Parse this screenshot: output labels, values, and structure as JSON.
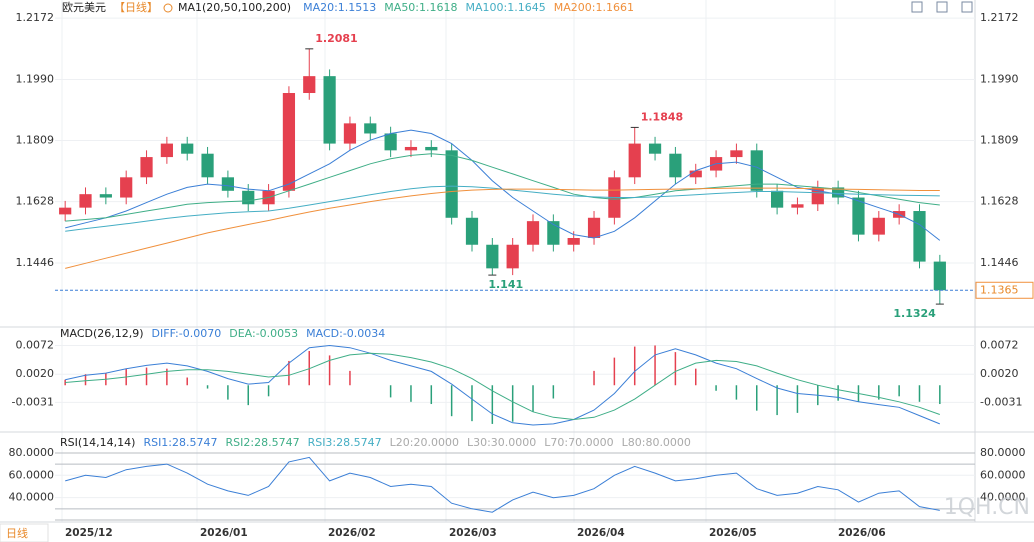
{
  "header": {
    "symbol": "欧元美元",
    "period": "【日线】",
    "indicator": "MA1(20,50,100,200)"
  },
  "period_button": "日线",
  "watermark": "1QH.CN",
  "chart_data": [
    {
      "type": "candlestick",
      "ylim": [
        1.1262,
        1.2211
      ],
      "yticks": [
        1.2172,
        {
          "value": 1.199,
          "label": "1.1990"
        },
        1.1809,
        1.1628,
        1.1446
      ],
      "up_color": "#e5404f",
      "down_color": "#2aa07a",
      "candles": {
        "open": [
          1.159,
          1.161,
          1.165,
          1.164,
          1.17,
          1.176,
          1.18,
          1.177,
          1.17,
          1.166,
          1.162,
          1.166,
          1.195,
          1.2,
          1.18,
          1.186,
          1.183,
          1.178,
          1.179,
          1.178,
          1.158,
          1.15,
          1.143,
          1.15,
          1.157,
          1.15,
          1.152,
          1.158,
          1.17,
          1.18,
          1.177,
          1.17,
          1.172,
          1.176,
          1.178,
          1.166,
          1.161,
          1.162,
          1.167,
          1.164,
          1.153,
          1.158,
          1.16,
          1.145
        ],
        "high": [
          1.163,
          1.167,
          1.167,
          1.172,
          1.178,
          1.182,
          1.182,
          1.179,
          1.172,
          1.168,
          1.168,
          1.197,
          1.2081,
          1.202,
          1.188,
          1.188,
          1.185,
          1.181,
          1.181,
          1.18,
          1.16,
          1.152,
          1.152,
          1.159,
          1.159,
          1.154,
          1.16,
          1.172,
          1.1848,
          1.182,
          1.179,
          1.174,
          1.178,
          1.18,
          1.18,
          1.168,
          1.164,
          1.169,
          1.169,
          1.166,
          1.16,
          1.162,
          1.162,
          1.147
        ],
        "low": [
          1.157,
          1.159,
          1.162,
          1.162,
          1.168,
          1.174,
          1.175,
          1.168,
          1.164,
          1.16,
          1.16,
          1.164,
          1.193,
          1.178,
          1.178,
          1.181,
          1.176,
          1.176,
          1.176,
          1.156,
          1.148,
          1.141,
          1.141,
          1.148,
          1.148,
          1.148,
          1.15,
          1.156,
          1.168,
          1.175,
          1.168,
          1.168,
          1.17,
          1.174,
          1.164,
          1.159,
          1.159,
          1.16,
          1.162,
          1.151,
          1.151,
          1.156,
          1.143,
          1.1324
        ],
        "close": [
          1.161,
          1.165,
          1.164,
          1.17,
          1.176,
          1.18,
          1.177,
          1.17,
          1.166,
          1.162,
          1.166,
          1.195,
          1.2,
          1.18,
          1.186,
          1.183,
          1.178,
          1.179,
          1.178,
          1.158,
          1.15,
          1.143,
          1.15,
          1.157,
          1.15,
          1.152,
          1.158,
          1.17,
          1.18,
          1.177,
          1.17,
          1.172,
          1.176,
          1.178,
          1.166,
          1.161,
          1.162,
          1.167,
          1.164,
          1.153,
          1.158,
          1.16,
          1.145,
          1.1365
        ]
      },
      "series": [
        {
          "name": "MA20:1.1513",
          "color": "#3b7fd6",
          "values": [
            1.155,
            1.1565,
            1.158,
            1.16,
            1.1625,
            1.165,
            1.167,
            1.168,
            1.1675,
            1.1665,
            1.166,
            1.168,
            1.171,
            1.174,
            1.178,
            1.181,
            1.183,
            1.184,
            1.183,
            1.18,
            1.175,
            1.169,
            1.164,
            1.16,
            1.156,
            1.153,
            1.152,
            1.154,
            1.158,
            1.163,
            1.168,
            1.172,
            1.174,
            1.1745,
            1.173,
            1.17,
            1.167,
            1.166,
            1.165,
            1.163,
            1.161,
            1.159,
            1.156,
            1.1513
          ]
        },
        {
          "name": "MA50:1.1618",
          "color": "#3fae87",
          "values": [
            1.157,
            1.1575,
            1.158,
            1.159,
            1.16,
            1.161,
            1.162,
            1.1625,
            1.1628,
            1.163,
            1.164,
            1.166,
            1.168,
            1.17,
            1.172,
            1.174,
            1.1755,
            1.1765,
            1.177,
            1.1765,
            1.175,
            1.173,
            1.171,
            1.169,
            1.167,
            1.165,
            1.164,
            1.1635,
            1.164,
            1.165,
            1.166,
            1.1665,
            1.167,
            1.1675,
            1.168,
            1.168,
            1.1675,
            1.167,
            1.1665,
            1.1655,
            1.1645,
            1.1635,
            1.1625,
            1.1618
          ]
        },
        {
          "name": "MA100:1.1645",
          "color": "#45aec4",
          "values": [
            1.154,
            1.1548,
            1.1555,
            1.1562,
            1.157,
            1.1578,
            1.1585,
            1.159,
            1.1595,
            1.1598,
            1.16,
            1.1608,
            1.1618,
            1.1628,
            1.1638,
            1.1648,
            1.1658,
            1.1666,
            1.1672,
            1.1674,
            1.1672,
            1.1668,
            1.1662,
            1.1656,
            1.165,
            1.1645,
            1.1642,
            1.164,
            1.164,
            1.1642,
            1.1645,
            1.1648,
            1.1652,
            1.1655,
            1.1658,
            1.1658,
            1.1656,
            1.1654,
            1.1652,
            1.165,
            1.1648,
            1.1647,
            1.1646,
            1.1645
          ]
        },
        {
          "name": "MA200:1.1661",
          "color": "#f0903c",
          "values": [
            1.143,
            1.1445,
            1.146,
            1.1475,
            1.149,
            1.1505,
            1.152,
            1.1535,
            1.1548,
            1.156,
            1.1572,
            1.1585,
            1.1597,
            1.1608,
            1.1618,
            1.1628,
            1.1637,
            1.1645,
            1.1652,
            1.1658,
            1.1662,
            1.1664,
            1.1665,
            1.1665,
            1.1664,
            1.1663,
            1.1662,
            1.1662,
            1.1663,
            1.1664,
            1.1665,
            1.1666,
            1.1667,
            1.1668,
            1.1668,
            1.1668,
            1.1667,
            1.1666,
            1.1665,
            1.1664,
            1.1663,
            1.1662,
            1.1661,
            1.1661
          ]
        }
      ],
      "x_labels": [
        "2025/12",
        "2026/01",
        "2026/02",
        "2026/03",
        "2026/04",
        "2026/05",
        "2026/06"
      ]
    },
    {
      "type": "macd",
      "title": "MACD(26,12,9)",
      "ylim": [
        -0.0081,
        0.01
      ],
      "yticks": [
        0.0072,
        {
          "value": 0.002,
          "label": "0.0020"
        },
        -0.0031
      ],
      "series": [
        {
          "name": "DIFF:-0.0070",
          "color": "#3b7fd6",
          "values": [
            0.001,
            0.0018,
            0.0022,
            0.003,
            0.0036,
            0.004,
            0.0035,
            0.0025,
            0.0012,
            0.0002,
            0.0005,
            0.004,
            0.0068,
            0.0072,
            0.0068,
            0.0058,
            0.0045,
            0.0035,
            0.0025,
            0.0002,
            -0.0025,
            -0.0052,
            -0.0068,
            -0.0072,
            -0.007,
            -0.0062,
            -0.0045,
            -0.0015,
            0.0025,
            0.0055,
            0.0066,
            0.0055,
            0.004,
            0.003,
            0.0012,
            -0.0005,
            -0.0015,
            -0.0018,
            -0.0022,
            -0.003,
            -0.0035,
            -0.004,
            -0.0055,
            -0.007
          ]
        },
        {
          "name": "DEA:-0.0053",
          "color": "#3fae87",
          "values": [
            0.0005,
            0.0008,
            0.0011,
            0.0015,
            0.002,
            0.0025,
            0.0028,
            0.0028,
            0.0025,
            0.002,
            0.0015,
            0.0018,
            0.003,
            0.0045,
            0.0055,
            0.0058,
            0.0056,
            0.005,
            0.0042,
            0.003,
            0.0012,
            -0.001,
            -0.003,
            -0.0048,
            -0.0058,
            -0.0062,
            -0.0058,
            -0.0045,
            -0.0025,
            0.0,
            0.0025,
            0.004,
            0.0045,
            0.0043,
            0.0035,
            0.0022,
            0.001,
            0.0,
            -0.0008,
            -0.0015,
            -0.0022,
            -0.003,
            -0.004,
            -0.0053
          ]
        }
      ],
      "histogram": {
        "name": "MACD:-0.0034",
        "color": "#3b7fd6",
        "values": [
          0.001,
          0.002,
          0.0022,
          0.003,
          0.0032,
          0.003,
          0.0014,
          -0.0006,
          -0.0026,
          -0.0036,
          -0.002,
          0.0044,
          0.0062,
          0.0054,
          0.0026,
          0.0,
          -0.0022,
          -0.003,
          -0.0034,
          -0.0056,
          -0.0065,
          -0.007,
          -0.0066,
          -0.0048,
          -0.0024,
          0.0,
          0.0026,
          0.005,
          0.007,
          0.0072,
          0.006,
          0.003,
          -0.001,
          -0.0026,
          -0.0046,
          -0.0054,
          -0.005,
          -0.0036,
          -0.0028,
          -0.003,
          -0.0026,
          -0.002,
          -0.003,
          -0.0034
        ]
      }
    },
    {
      "type": "rsi",
      "title": "RSI(14,14,14)",
      "ylim": [
        20,
        91.6
      ],
      "yticks": [
        {
          "value": 80,
          "label": "80.0000"
        },
        {
          "value": 60,
          "label": "60.0000"
        },
        {
          "value": 40,
          "label": "40.0000"
        }
      ],
      "legend": [
        {
          "name": "RSI1:28.5747",
          "color": "#3b7fd6"
        },
        {
          "name": "RSI2:28.5747",
          "color": "#3fae87"
        },
        {
          "name": "RSI3:28.5747",
          "color": "#45aec4"
        },
        {
          "name": "L20:20.0000",
          "color": "#aaaaaa"
        },
        {
          "name": "L30:30.0000",
          "color": "#aaaaaa"
        },
        {
          "name": "L70:70.0000",
          "color": "#aaaaaa"
        },
        {
          "name": "L80:80.0000",
          "color": "#aaaaaa"
        }
      ],
      "levels": [
        20,
        30,
        70,
        80
      ],
      "color": "#3b7fd6",
      "values": [
        55,
        60,
        58,
        65,
        68,
        70,
        62,
        52,
        46,
        42,
        50,
        72,
        76,
        55,
        62,
        58,
        50,
        52,
        50,
        35,
        30,
        27,
        38,
        45,
        40,
        42,
        48,
        60,
        68,
        62,
        55,
        57,
        60,
        62,
        48,
        42,
        44,
        50,
        47,
        36,
        44,
        46,
        32,
        28.5747
      ]
    }
  ]
}
